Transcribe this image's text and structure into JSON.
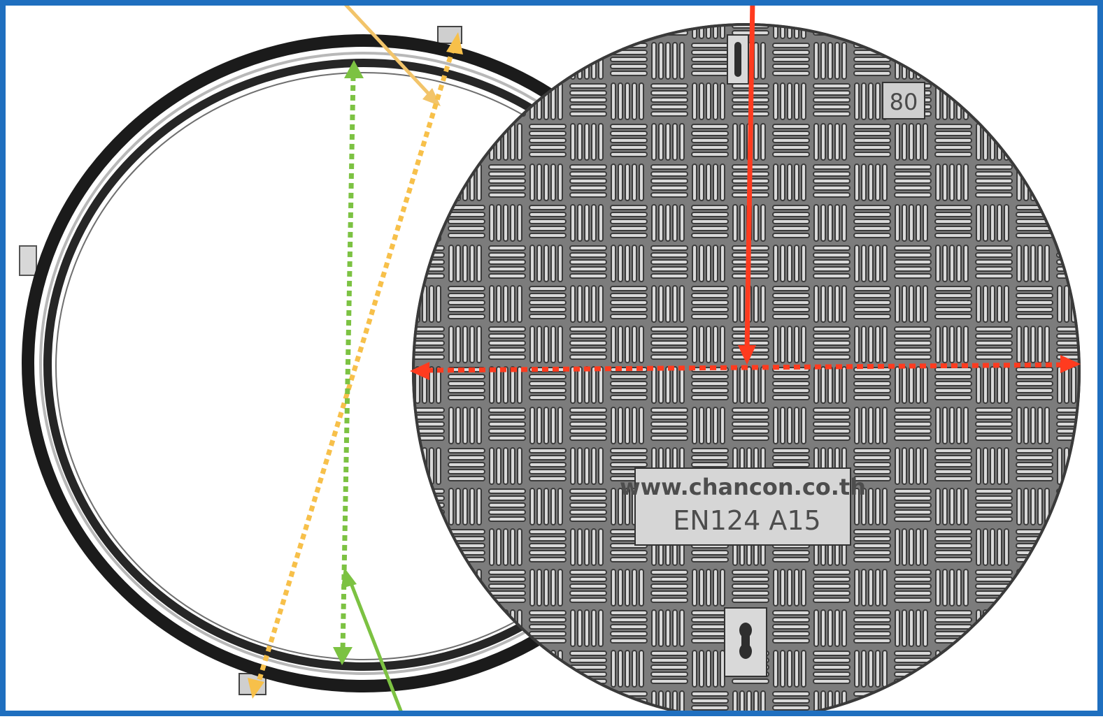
{
  "photo": {
    "subject": "manhole-cover-and-frame",
    "cover_badge": "80",
    "cover_url": "www.chancon.co.th",
    "cover_rating": "EN124 A15"
  },
  "annotations": {
    "frame_border_color": "#1f6fbf",
    "yellow_color": "#f7c04a",
    "yellow_line_color": "#f2c46a",
    "green_color": "#7cc242",
    "red_color": "#ff3b1f",
    "metal_fill": "#7a7a7a",
    "metal_dark": "#3a3a3a",
    "ring_color": "#1b1b1b"
  }
}
